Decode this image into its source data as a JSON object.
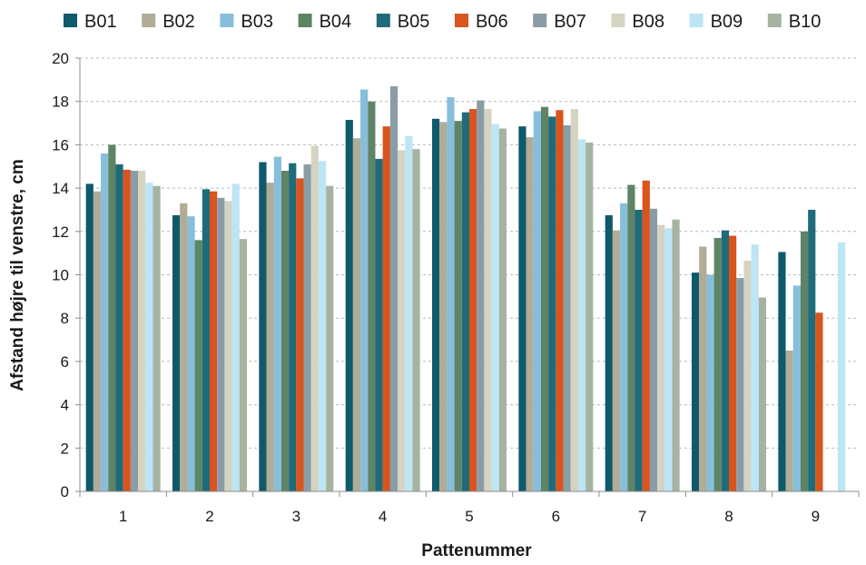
{
  "chart_data": {
    "type": "bar",
    "title": "",
    "xlabel": "Pattenummer",
    "ylabel": "Afstand højre til venstre, cm",
    "ylim": [
      0,
      20
    ],
    "yticks": [
      "0",
      "2",
      "4",
      "6",
      "8",
      "10",
      "12",
      "14",
      "16",
      "18",
      "20"
    ],
    "grid": true,
    "legend_position": "top",
    "categories": [
      "1",
      "2",
      "3",
      "4",
      "5",
      "6",
      "7",
      "8",
      "9"
    ],
    "series": [
      {
        "name": "B01",
        "color": "#0e5a6a",
        "values": [
          14.2,
          12.75,
          15.2,
          17.15,
          17.2,
          16.85,
          12.75,
          10.1,
          11.05
        ]
      },
      {
        "name": "B02",
        "color": "#b0ac96",
        "values": [
          13.85,
          13.3,
          14.25,
          16.3,
          17.05,
          16.35,
          12.05,
          11.3,
          6.5
        ]
      },
      {
        "name": "B03",
        "color": "#87bedb",
        "values": [
          15.6,
          12.7,
          15.45,
          18.55,
          18.2,
          17.55,
          13.3,
          10.0,
          9.5
        ]
      },
      {
        "name": "B04",
        "color": "#5e8466",
        "values": [
          16.0,
          11.6,
          14.8,
          18.0,
          17.1,
          17.75,
          14.15,
          11.7,
          12.0
        ]
      },
      {
        "name": "B05",
        "color": "#1e6b7a",
        "values": [
          15.1,
          13.95,
          15.15,
          15.35,
          17.5,
          17.3,
          13.0,
          12.05,
          13.0
        ]
      },
      {
        "name": "B06",
        "color": "#d9541e",
        "values": [
          14.85,
          13.85,
          14.45,
          16.85,
          17.65,
          17.6,
          14.35,
          11.8,
          8.25
        ]
      },
      {
        "name": "B07",
        "color": "#8a9da6",
        "values": [
          14.8,
          13.55,
          15.1,
          18.7,
          18.05,
          16.9,
          13.05,
          9.85,
          null
        ]
      },
      {
        "name": "B08",
        "color": "#d5d4c2",
        "values": [
          14.8,
          13.4,
          15.95,
          15.75,
          17.65,
          17.65,
          12.3,
          10.65,
          null
        ]
      },
      {
        "name": "B09",
        "color": "#bde5f5",
        "values": [
          14.25,
          14.2,
          15.25,
          16.4,
          16.95,
          16.25,
          12.15,
          11.4,
          11.5
        ]
      },
      {
        "name": "B10",
        "color": "#a6b3a1",
        "values": [
          14.1,
          11.65,
          14.1,
          15.8,
          16.75,
          16.1,
          12.55,
          8.95,
          null
        ]
      }
    ]
  }
}
